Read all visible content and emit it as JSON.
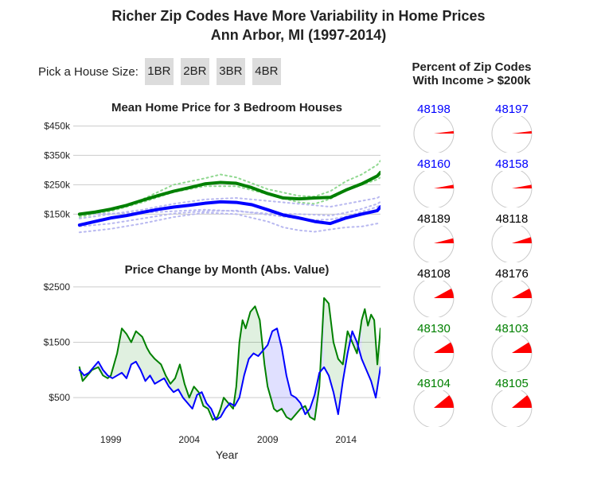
{
  "title_line1": "Richer Zip Codes Have More Variability in Home Prices",
  "title_line2": "Ann Arbor, MI (1997-2014)",
  "picker": {
    "label": "Pick a House Size:",
    "options": [
      "1BR",
      "2BR",
      "3BR",
      "4BR"
    ]
  },
  "pie_panel_title_line1": "Percent of Zip Codes",
  "pie_panel_title_line2": "With Income > $200k",
  "colors": {
    "green": "#008000",
    "blue": "#0000ff",
    "black": "#000000",
    "red": "#ff0000"
  },
  "chart_data": [
    {
      "type": "line",
      "title": "Mean Home Price for 3 Bedroom Houses",
      "xlabel": "",
      "ylabel": "",
      "xlim": [
        1996.6,
        2016.2
      ],
      "ylim": [
        40,
        500
      ],
      "yticks": [
        150,
        250,
        350,
        450
      ],
      "ytick_labels": [
        "$150k",
        "$250k",
        "$350k",
        "$450k"
      ],
      "grid": "horizontal",
      "series": [
        {
          "color": "#008000",
          "style": "bold",
          "x": [
            1997,
            1998,
            1999,
            2000,
            2001,
            2002,
            2003,
            2004,
            2005,
            2006,
            2007,
            2008,
            2009,
            2010,
            2011,
            2012,
            2013,
            2014,
            2015,
            2016,
            2016.2
          ],
          "y": [
            150,
            157,
            167,
            180,
            197,
            213,
            228,
            240,
            253,
            258,
            255,
            240,
            220,
            205,
            202,
            205,
            207,
            232,
            253,
            280,
            292
          ]
        },
        {
          "color": "#0000ff",
          "style": "bold",
          "x": [
            1997,
            1998,
            1999,
            2000,
            2001,
            2002,
            2003,
            2004,
            2005,
            2006,
            2007,
            2008,
            2009,
            2010,
            2011,
            2012,
            2013,
            2014,
            2015,
            2016,
            2016.2
          ],
          "y": [
            113,
            125,
            137,
            145,
            156,
            166,
            174,
            180,
            187,
            192,
            190,
            182,
            165,
            147,
            137,
            125,
            118,
            137,
            150,
            162,
            175
          ]
        },
        {
          "color": "#90d890",
          "style": "dotted",
          "x": [
            1997,
            1999,
            2001,
            2003,
            2005,
            2006,
            2007,
            2009,
            2011,
            2012,
            2013,
            2014,
            2015,
            2016,
            2016.2
          ],
          "y": [
            140,
            162,
            200,
            250,
            272,
            285,
            275,
            235,
            212,
            210,
            228,
            262,
            285,
            318,
            332
          ]
        },
        {
          "color": "#90d890",
          "style": "dotted",
          "x": [
            1997,
            1999,
            2001,
            2003,
            2005,
            2007,
            2009,
            2011,
            2012,
            2013,
            2014,
            2015,
            2016,
            2016.2
          ],
          "y": [
            145,
            160,
            190,
            225,
            245,
            245,
            218,
            190,
            185,
            202,
            230,
            250,
            268,
            275
          ]
        },
        {
          "color": "#b8b8f0",
          "style": "dotted",
          "x": [
            1997,
            1999,
            2001,
            2003,
            2005,
            2007,
            2009,
            2011,
            2012,
            2013,
            2014,
            2015,
            2016,
            2016.2
          ],
          "y": [
            135,
            150,
            165,
            185,
            200,
            205,
            195,
            185,
            180,
            175,
            185,
            195,
            205,
            212
          ]
        },
        {
          "color": "#b8b8f0",
          "style": "dotted",
          "x": [
            1997,
            1999,
            2001,
            2003,
            2005,
            2007,
            2009,
            2011,
            2012,
            2013,
            2014,
            2015,
            2016,
            2016.2
          ],
          "y": [
            150,
            152,
            155,
            160,
            165,
            160,
            152,
            150,
            148,
            145,
            155,
            168,
            185,
            192
          ]
        },
        {
          "color": "#b8b8f0",
          "style": "dotted",
          "x": [
            1997,
            1999,
            2001,
            2003,
            2005,
            2007,
            2009,
            2011,
            2012,
            2013,
            2014,
            2015,
            2016,
            2016.2
          ],
          "y": [
            108,
            118,
            135,
            152,
            160,
            162,
            148,
            135,
            130,
            132,
            142,
            158,
            175,
            182
          ]
        },
        {
          "color": "#b8b8f0",
          "style": "dotted",
          "x": [
            1997,
            1999,
            2001,
            2003,
            2005,
            2007,
            2009,
            2010,
            2011,
            2012,
            2013,
            2014,
            2015,
            2016,
            2016.2
          ],
          "y": [
            88,
            100,
            118,
            140,
            155,
            150,
            125,
            105,
            95,
            90,
            98,
            105,
            108,
            118,
            120
          ]
        }
      ]
    },
    {
      "type": "area",
      "title": "Price Change by Month (Abs. Value)",
      "xlabel": "Year",
      "ylabel": "",
      "xlim": [
        1996.6,
        2016.2
      ],
      "ylim": [
        0,
        2800
      ],
      "yticks": [
        500,
        1500,
        2500
      ],
      "ytick_labels": [
        "$500",
        "$1500",
        "$2500"
      ],
      "xticks": [
        1999,
        2004,
        2009,
        2014
      ],
      "xtick_labels": [
        "1999",
        "2004",
        "2009",
        "2014"
      ],
      "grid": "horizontal",
      "fill_between": true,
      "series": [
        {
          "color": "#008000",
          "x": [
            1997,
            1997.2,
            1997.5,
            1997.8,
            1998.2,
            1998.5,
            1998.8,
            1999,
            1999.4,
            1999.7,
            2000,
            2000.3,
            2000.6,
            2001,
            2001.3,
            2001.5,
            2001.8,
            2002.2,
            2002.5,
            2002.8,
            2003.1,
            2003.4,
            2003.7,
            2004,
            2004.3,
            2004.6,
            2004.9,
            2005.2,
            2005.5,
            2005.8,
            2006,
            2006.2,
            2006.5,
            2006.8,
            2007,
            2007.2,
            2007.4,
            2007.6,
            2007.9,
            2008.2,
            2008.5,
            2008.8,
            2009,
            2009.2,
            2009.4,
            2009.6,
            2009.9,
            2010.2,
            2010.5,
            2010.8,
            2011.1,
            2011.4,
            2011.7,
            2012,
            2012.3,
            2012.6,
            2012.9,
            2013.2,
            2013.5,
            2013.8,
            2014.1,
            2014.4,
            2014.7,
            2015,
            2015.2,
            2015.4,
            2015.6,
            2015.8,
            2016,
            2016.2
          ],
          "y": [
            1050,
            800,
            900,
            1000,
            1050,
            900,
            850,
            900,
            1300,
            1750,
            1650,
            1500,
            1700,
            1600,
            1400,
            1300,
            1200,
            1100,
            900,
            750,
            850,
            1100,
            750,
            500,
            700,
            600,
            350,
            300,
            100,
            150,
            300,
            500,
            400,
            300,
            700,
            1500,
            1900,
            1750,
            2050,
            2150,
            1900,
            1100,
            700,
            500,
            300,
            250,
            300,
            150,
            100,
            200,
            300,
            350,
            150,
            100,
            700,
            2300,
            2200,
            1500,
            1200,
            1100,
            1700,
            1500,
            1300,
            1900,
            2100,
            1800,
            2000,
            1900,
            1100,
            1750
          ]
        },
        {
          "color": "#0000ff",
          "x": [
            1997,
            1997.3,
            1997.6,
            1997.9,
            1998.2,
            1998.5,
            1998.8,
            1999.1,
            1999.4,
            1999.7,
            2000,
            2000.3,
            2000.6,
            2000.9,
            2001.2,
            2001.5,
            2001.8,
            2002.1,
            2002.4,
            2002.7,
            2003,
            2003.3,
            2003.6,
            2003.9,
            2004.2,
            2004.5,
            2004.8,
            2005.1,
            2005.4,
            2005.7,
            2006,
            2006.3,
            2006.6,
            2006.9,
            2007.2,
            2007.5,
            2007.8,
            2008.1,
            2008.4,
            2008.7,
            2009,
            2009.3,
            2009.6,
            2009.9,
            2010.2,
            2010.5,
            2010.8,
            2011.1,
            2011.4,
            2011.7,
            2012,
            2012.3,
            2012.6,
            2012.9,
            2013.2,
            2013.5,
            2013.8,
            2014.1,
            2014.4,
            2014.7,
            2015,
            2015.3,
            2015.6,
            2015.9,
            2016.2
          ],
          "y": [
            1000,
            900,
            950,
            1050,
            1150,
            1000,
            900,
            850,
            900,
            950,
            850,
            1100,
            1150,
            1000,
            800,
            900,
            750,
            800,
            850,
            700,
            600,
            650,
            500,
            400,
            300,
            550,
            600,
            400,
            300,
            100,
            150,
            300,
            400,
            350,
            500,
            900,
            1200,
            1300,
            1250,
            1350,
            1450,
            1700,
            1750,
            1400,
            900,
            550,
            500,
            400,
            200,
            300,
            550,
            950,
            1050,
            900,
            600,
            200,
            800,
            1300,
            1700,
            1500,
            1200,
            1000,
            800,
            500,
            1050
          ]
        }
      ]
    }
  ],
  "pies": [
    {
      "zip": "48198",
      "color": "#0000ff",
      "pct": 0.02
    },
    {
      "zip": "48197",
      "color": "#0000ff",
      "pct": 0.02
    },
    {
      "zip": "48160",
      "color": "#0000ff",
      "pct": 0.03
    },
    {
      "zip": "48158",
      "color": "#0000ff",
      "pct": 0.03
    },
    {
      "zip": "48189",
      "color": "#000000",
      "pct": 0.04
    },
    {
      "zip": "48118",
      "color": "#000000",
      "pct": 0.05
    },
    {
      "zip": "48108",
      "color": "#000000",
      "pct": 0.08
    },
    {
      "zip": "48176",
      "color": "#000000",
      "pct": 0.08
    },
    {
      "zip": "48130",
      "color": "#008000",
      "pct": 0.09
    },
    {
      "zip": "48103",
      "color": "#008000",
      "pct": 0.09
    },
    {
      "zip": "48104",
      "color": "#008000",
      "pct": 0.11
    },
    {
      "zip": "48105",
      "color": "#008000",
      "pct": 0.11
    }
  ]
}
